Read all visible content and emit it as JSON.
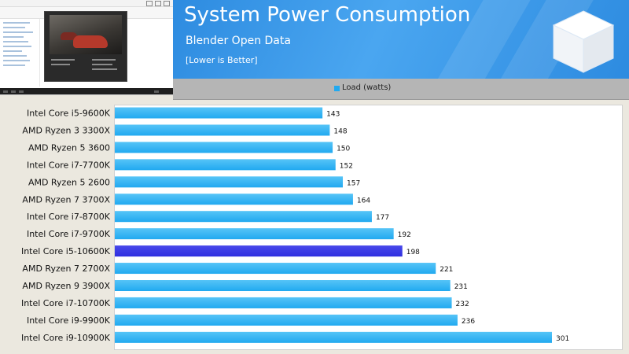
{
  "header": {
    "title": "System Power Consumption",
    "subtitle": "Blender Open Data",
    "note": "[Lower is Better]"
  },
  "legend": {
    "label": "Load (watts)",
    "color": "#21a9f0"
  },
  "colors": {
    "bar": "#21a9f0",
    "bar_highlight": "#2f2fe0",
    "header": "#3a98e8"
  },
  "chart_data": {
    "type": "bar",
    "orientation": "horizontal",
    "title": "System Power Consumption",
    "subtitle": "Blender Open Data",
    "note": "[Lower is Better]",
    "xlabel": "",
    "ylabel": "",
    "xlim": [
      0,
      320
    ],
    "grid": false,
    "legend_position": "top-center",
    "highlight": "Intel Core i5-10600K",
    "categories": [
      "Intel Core i5-9600K",
      "AMD Ryzen 3 3300X",
      "AMD Ryzen 5 3600",
      "Intel Core i7-7700K",
      "AMD Ryzen 5 2600",
      "AMD Ryzen 7 3700X",
      "Intel Core i7-8700K",
      "Intel Core i7-9700K",
      "Intel Core i5-10600K",
      "AMD Ryzen 7 2700X",
      "AMD Ryzen 9 3900X",
      "Intel Core i7-10700K",
      "Intel Core i9-9900K",
      "Intel Core i9-10900K"
    ],
    "series": [
      {
        "name": "Load (watts)",
        "values": [
          143,
          148,
          150,
          152,
          157,
          164,
          177,
          192,
          198,
          221,
          231,
          232,
          236,
          301
        ]
      }
    ]
  }
}
